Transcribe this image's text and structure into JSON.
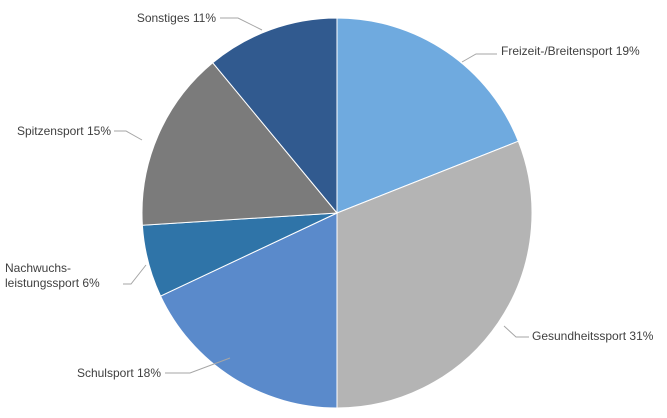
{
  "chart_data": {
    "type": "pie",
    "title": "",
    "legend": "none",
    "start_angle": "12 o'clock, clockwise",
    "slices": [
      {
        "label_lines": [
          "Freizeit-/Breitensport 19%"
        ],
        "category": "Freizeit-/Breitensport",
        "value": 19,
        "color": "#6faadf"
      },
      {
        "label_lines": [
          "Gesundheitssport 31%"
        ],
        "category": "Gesundheitssport",
        "value": 31,
        "color": "#b4b4b4"
      },
      {
        "label_lines": [
          "Schulsport 18%"
        ],
        "category": "Schulsport",
        "value": 18,
        "color": "#5a8acb"
      },
      {
        "label_lines": [
          "Nachwuchs-",
          "leistungssport 6%"
        ],
        "category": "Nachwuchsleistungssport",
        "value": 6,
        "color": "#2f74a8"
      },
      {
        "label_lines": [
          "Spitzensport 15%"
        ],
        "category": "Spitzensport",
        "value": 15,
        "color": "#7b7b7b"
      },
      {
        "label_lines": [
          "Sonstiges 11%"
        ],
        "category": "Sonstiges",
        "value": 11,
        "color": "#315a8f"
      }
    ]
  }
}
